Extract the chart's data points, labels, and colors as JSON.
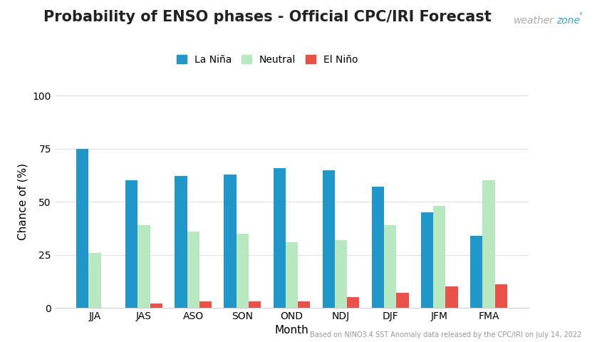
{
  "title": "Probability of ENSO phases - Official CPC/IRI Forecast",
  "xlabel": "Month",
  "ylabel": "Chance of (%)",
  "categories": [
    "JJA",
    "JAS",
    "ASO",
    "SON",
    "OND",
    "NDJ",
    "DJF",
    "JFM",
    "FMA"
  ],
  "la_nina": [
    75,
    60,
    62,
    63,
    66,
    65,
    57,
    45,
    34
  ],
  "neutral": [
    26,
    39,
    36,
    35,
    31,
    32,
    39,
    48,
    60
  ],
  "el_nino": [
    0,
    2,
    3,
    3,
    3,
    5,
    7,
    10,
    11
  ],
  "la_nina_color": "#2196C8",
  "neutral_color": "#B8E8C0",
  "el_nino_color": "#E8524A",
  "background_color": "#FFFFFF",
  "grid_color": "#E0E0E0",
  "ylim": [
    0,
    100
  ],
  "yticks": [
    0,
    25,
    50,
    75,
    100
  ],
  "title_fontsize": 15,
  "axis_label_fontsize": 11,
  "tick_fontsize": 10,
  "legend_labels": [
    "La Niña",
    "Neutral",
    "El Niño"
  ],
  "footnote": "Based on NINO3.4 SST Anomaly data released by the CPC/IRI on July 14, 2022",
  "bar_width": 0.25
}
